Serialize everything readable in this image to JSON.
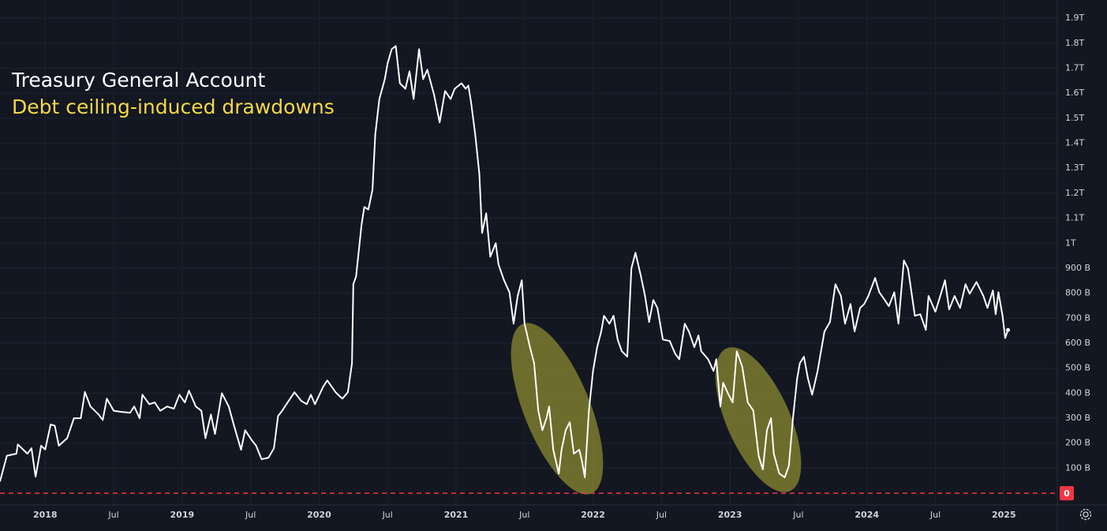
{
  "chart_data": {
    "type": "line",
    "title": "Treasury General Account",
    "subtitle": "Debt ceiling-induced drawdowns",
    "color": "#ffffff",
    "subtitle_color": "#f5d848",
    "reference_line": 0,
    "reference_color": "#f23645",
    "grid": true,
    "xlim": [
      2017.67,
      2025.39
    ],
    "ylim": [
      -47,
      1973
    ],
    "xticks": [
      2018,
      {
        "value": 2018.5,
        "label": "Jul"
      },
      2019,
      {
        "value": 2019.5,
        "label": "Jul"
      },
      2020,
      {
        "value": 2020.5,
        "label": "Jul"
      },
      2021,
      {
        "value": 2021.5,
        "label": "Jul"
      },
      2022,
      {
        "value": 2022.5,
        "label": "Jul"
      },
      2023,
      {
        "value": 2023.5,
        "label": "Jul"
      },
      2024,
      {
        "value": 2024.5,
        "label": "Jul"
      },
      2025
    ],
    "yticks": [
      {
        "value": 100,
        "label": "100 B"
      },
      {
        "value": 200,
        "label": "200 B"
      },
      {
        "value": 300,
        "label": "300 B"
      },
      {
        "value": 400,
        "label": "400 B"
      },
      {
        "value": 500,
        "label": "500 B"
      },
      {
        "value": 600,
        "label": "600 B"
      },
      {
        "value": 700,
        "label": "700 B"
      },
      {
        "value": 800,
        "label": "800 B"
      },
      {
        "value": 900,
        "label": "900 B"
      },
      {
        "value": 1000,
        "label": "1T"
      },
      {
        "value": 1100,
        "label": "1.1T"
      },
      {
        "value": 1200,
        "label": "1.2T"
      },
      {
        "value": 1300,
        "label": "1.3T"
      },
      {
        "value": 1400,
        "label": "1.4T"
      },
      {
        "value": 1500,
        "label": "1.5T"
      },
      {
        "value": 1600,
        "label": "1.6T"
      },
      {
        "value": 1700,
        "label": "1.7T"
      },
      {
        "value": 1800,
        "label": "1.8T"
      },
      {
        "value": 1900,
        "label": "1.9T"
      }
    ],
    "x": [
      2017.67,
      2017.72,
      2017.79,
      2017.8,
      2017.87,
      2017.9,
      2017.93,
      2017.97,
      2018.0,
      2018.04,
      2018.07,
      2018.1,
      2018.16,
      2018.21,
      2018.26,
      2018.29,
      2018.33,
      2018.39,
      2018.42,
      2018.45,
      2018.5,
      2018.56,
      2018.62,
      2018.65,
      2018.69,
      2018.71,
      2018.76,
      2018.8,
      2018.84,
      2018.89,
      2018.94,
      2018.98,
      2019.02,
      2019.05,
      2019.1,
      2019.14,
      2019.17,
      2019.21,
      2019.24,
      2019.29,
      2019.34,
      2019.38,
      2019.43,
      2019.46,
      2019.51,
      2019.54,
      2019.58,
      2019.63,
      2019.67,
      2019.7,
      2019.73,
      2019.77,
      2019.82,
      2019.87,
      2019.91,
      2019.94,
      2019.97,
      2020.03,
      2020.06,
      2020.12,
      2020.17,
      2020.21,
      2020.24,
      2020.25,
      2020.27,
      2020.31,
      2020.33,
      2020.36,
      2020.39,
      2020.41,
      2020.44,
      2020.48,
      2020.5,
      2020.53,
      2020.56,
      2020.59,
      2020.63,
      2020.66,
      2020.69,
      2020.73,
      2020.76,
      2020.79,
      2020.84,
      2020.88,
      2020.92,
      2020.96,
      2020.99,
      2021.04,
      2021.07,
      2021.09,
      2021.11,
      2021.14,
      2021.17,
      2021.19,
      2021.22,
      2021.25,
      2021.29,
      2021.31,
      2021.35,
      2021.39,
      2021.42,
      2021.45,
      2021.48,
      2021.5,
      2021.54,
      2021.57,
      2021.6,
      2021.63,
      2021.66,
      2021.68,
      2021.71,
      2021.75,
      2021.77,
      2021.8,
      2021.83,
      2021.86,
      2021.9,
      2021.92,
      2021.94,
      2021.97,
      2022.0,
      2022.03,
      2022.06,
      2022.08,
      2022.12,
      2022.15,
      2022.18,
      2022.21,
      2022.25,
      2022.28,
      2022.31,
      2022.35,
      2022.38,
      2022.41,
      2022.44,
      2022.47,
      2022.51,
      2022.56,
      2022.6,
      2022.63,
      2022.67,
      2022.7,
      2022.74,
      2022.77,
      2022.79,
      2022.84,
      2022.88,
      2022.9,
      2022.93,
      2022.95,
      2022.99,
      2023.02,
      2023.05,
      2023.09,
      2023.13,
      2023.17,
      2023.21,
      2023.24,
      2023.27,
      2023.3,
      2023.32,
      2023.36,
      2023.4,
      2023.43,
      2023.46,
      2023.49,
      2023.51,
      2023.54,
      2023.57,
      2023.6,
      2023.64,
      2023.69,
      2023.73,
      2023.77,
      2023.81,
      2023.84,
      2023.88,
      2023.91,
      2023.95,
      2023.98,
      2024.01,
      2024.06,
      2024.09,
      2024.13,
      2024.16,
      2024.2,
      2024.23,
      2024.27,
      2024.3,
      2024.35,
      2024.39,
      2024.43,
      2024.45,
      2024.5,
      2024.53,
      2024.57,
      2024.6,
      2024.64,
      2024.68,
      2024.72,
      2024.75,
      2024.8,
      2024.85,
      2024.88,
      2024.92,
      2024.94,
      2024.96,
      2024.99,
      2025.01,
      2025.03
    ],
    "values": [
      47,
      150,
      158,
      195,
      158,
      180,
      66,
      190,
      175,
      275,
      270,
      190,
      220,
      300,
      300,
      405,
      347,
      315,
      293,
      378,
      330,
      325,
      322,
      347,
      300,
      394,
      356,
      363,
      330,
      347,
      338,
      394,
      363,
      410,
      347,
      330,
      220,
      315,
      237,
      400,
      347,
      268,
      174,
      252,
      211,
      190,
      136,
      142,
      180,
      309,
      330,
      363,
      404,
      369,
      356,
      394,
      356,
      426,
      451,
      404,
      378,
      404,
      520,
      836,
      867,
      1073,
      1145,
      1135,
      1215,
      1435,
      1577,
      1656,
      1719,
      1776,
      1789,
      1640,
      1618,
      1688,
      1577,
      1776,
      1656,
      1694,
      1593,
      1483,
      1609,
      1577,
      1618,
      1640,
      1618,
      1631,
      1562,
      1435,
      1278,
      1041,
      1120,
      946,
      1000,
      915,
      852,
      804,
      678,
      789,
      852,
      678,
      584,
      520,
      331,
      252,
      300,
      347,
      174,
      79,
      174,
      252,
      284,
      158,
      174,
      126,
      63,
      331,
      489,
      584,
      647,
      710,
      678,
      710,
      615,
      568,
      546,
      899,
      962,
      868,
      789,
      685,
      773,
      741,
      615,
      609,
      558,
      536,
      678,
      647,
      584,
      631,
      568,
      536,
      489,
      536,
      347,
      442,
      394,
      363,
      568,
      505,
      363,
      331,
      148,
      95,
      252,
      300,
      158,
      79,
      63,
      110,
      300,
      457,
      520,
      546,
      457,
      394,
      489,
      647,
      685,
      836,
      789,
      678,
      757,
      647,
      741,
      757,
      789,
      861,
      804,
      773,
      748,
      804,
      678,
      931,
      899,
      710,
      716,
      653,
      789,
      726,
      779,
      852,
      735,
      789,
      741,
      836,
      798,
      845,
      789,
      741,
      811,
      716,
      804,
      710,
      621,
      653
    ]
  }
}
